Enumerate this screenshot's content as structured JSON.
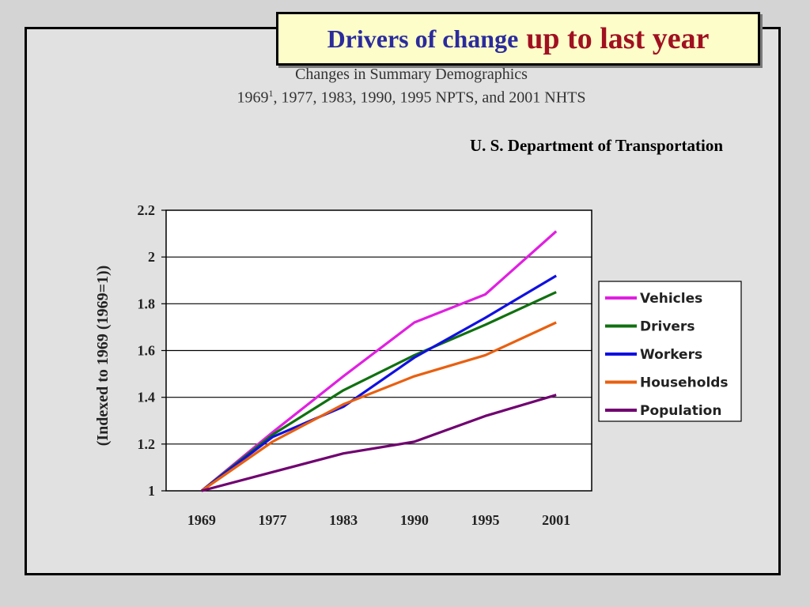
{
  "title": {
    "part1": "Drivers of change",
    "part2": "up to last year"
  },
  "subtitle_line1": "Changes in Summary Demographics",
  "subtitle_line2_pre": "1969",
  "subtitle_line2_sup": "1",
  "subtitle_line2_post": ", 1977, 1983, 1990, 1995 NPTS, and 2001 NHTS",
  "source": "U. S. Department of Transportation",
  "chart_data": {
    "type": "line",
    "title": "",
    "xlabel": "",
    "ylabel": "(Indexed to 1969 (1969=1))",
    "categories": [
      "1969",
      "1977",
      "1983",
      "1990",
      "1995",
      "2001"
    ],
    "ylim": [
      1,
      2.2
    ],
    "yticks": [
      "1",
      "1.2",
      "1.4",
      "1.6",
      "1.8",
      "2",
      "2.2"
    ],
    "grid": "horizontal",
    "legend_position": "right",
    "series": [
      {
        "name": "Vehicles",
        "color": "#e020e0",
        "values": [
          1,
          1.25,
          1.49,
          1.72,
          1.84,
          2.11
        ]
      },
      {
        "name": "Drivers",
        "color": "#107010",
        "values": [
          1,
          1.24,
          1.43,
          1.58,
          1.71,
          1.85
        ]
      },
      {
        "name": "Workers",
        "color": "#1010e0",
        "values": [
          1,
          1.23,
          1.36,
          1.57,
          1.74,
          1.92
        ]
      },
      {
        "name": "Households",
        "color": "#e86010",
        "values": [
          1,
          1.21,
          1.37,
          1.49,
          1.58,
          1.72
        ]
      },
      {
        "name": "Population",
        "color": "#700070",
        "values": [
          1,
          1.08,
          1.16,
          1.21,
          1.32,
          1.41
        ]
      }
    ]
  }
}
